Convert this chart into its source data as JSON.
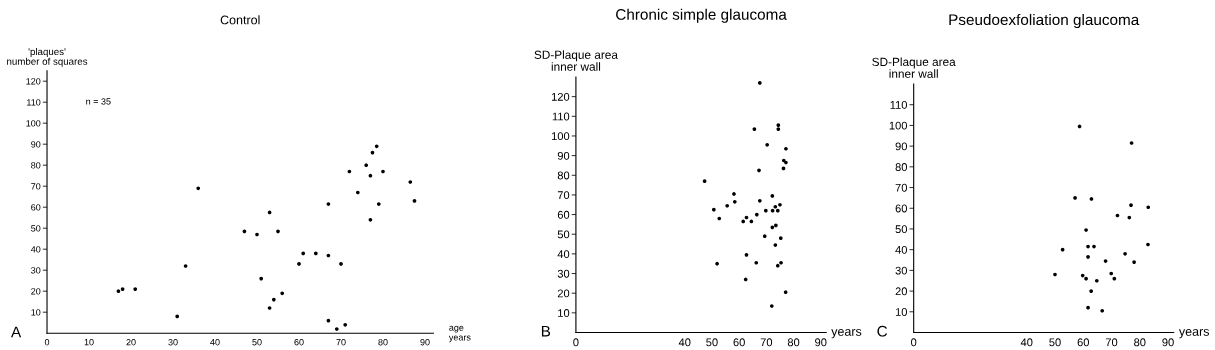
{
  "chart_data": [
    {
      "type": "scatter",
      "title": "Control",
      "ylabel": "'plaques'\nnumber of squares",
      "xlabel": "age\nyears",
      "annotations": [
        "A",
        "n = 35"
      ],
      "x": [
        17,
        18,
        21,
        31,
        33,
        36,
        47,
        50,
        51,
        53,
        53,
        54,
        55,
        56,
        60,
        61,
        64,
        67,
        67,
        67,
        69,
        70,
        71,
        72,
        74,
        76,
        77,
        77,
        77.5,
        78.5,
        79,
        80,
        86.5,
        87.5
      ],
      "values": [
        20,
        21,
        21,
        8,
        32,
        69,
        48.5,
        47,
        26,
        12,
        57.5,
        16,
        48.5,
        19,
        33,
        38,
        38,
        37,
        61.5,
        6,
        2,
        33,
        4,
        77,
        67,
        80,
        75,
        54,
        86,
        89,
        61.5,
        77,
        72,
        63
      ],
      "color": "#000000",
      "marker": "circle",
      "grid": false,
      "xlim": [
        0,
        92
      ],
      "xticks": [
        0,
        10,
        20,
        30,
        40,
        50,
        60,
        70,
        80,
        90
      ],
      "ylim": [
        0,
        125
      ],
      "yticks": [
        10,
        20,
        30,
        40,
        50,
        60,
        70,
        80,
        90,
        100,
        110,
        120
      ]
    },
    {
      "type": "scatter",
      "title": "Chronic simple glaucoma",
      "ylabel": "SD-Plaque area\ninner wall",
      "xlabel": "years",
      "annotations": [
        "B"
      ],
      "x": [
        67.6,
        65.6,
        74.4,
        74.4,
        70.3,
        77.2,
        76.4,
        77.2,
        76.3,
        67.3,
        47.3,
        58.1,
        58.4,
        67.6,
        72.2,
        50.7,
        55.6,
        52.7,
        61.5,
        62.7,
        64.5,
        66.5,
        69.8,
        72.3,
        73.3,
        74.2,
        75,
        72.2,
        73.5,
        69.4,
        75.3,
        73.3,
        62.7,
        51.9,
        66.3,
        74.2,
        75.4,
        62.4,
        77.1,
        72
      ],
      "values": [
        127,
        103.5,
        105.5,
        103.5,
        95.5,
        93.5,
        87.5,
        86.5,
        83.5,
        82.5,
        77,
        70.5,
        66.5,
        67,
        69.5,
        62.5,
        64.5,
        58,
        56.5,
        58.5,
        56.5,
        60,
        62,
        62,
        64,
        62,
        65,
        53.5,
        54.5,
        49,
        48,
        44.5,
        39.5,
        35,
        35.5,
        34,
        35.5,
        27,
        20.5,
        13.5
      ],
      "color": "#000000",
      "marker": "circle",
      "grid": false,
      "xlim": [
        0,
        92
      ],
      "xticks": [
        0,
        40,
        50,
        60,
        70,
        80,
        90
      ],
      "ylim": [
        0,
        130
      ],
      "yticks": [
        10,
        20,
        30,
        40,
        50,
        60,
        70,
        80,
        90,
        100,
        110,
        120
      ]
    },
    {
      "type": "scatter",
      "title": "Pseudoexfoliation glaucoma",
      "ylabel": "SD-Plaque area\ninner wall",
      "xlabel": "years",
      "annotations": [
        "C"
      ],
      "x": [
        50,
        58.7,
        77.1,
        57.1,
        62.9,
        76.9,
        83,
        72.1,
        76.3,
        61,
        52.7,
        61.7,
        63.8,
        82.9,
        61.7,
        74.8,
        67.9,
        78,
        69.9,
        59.8,
        61,
        71,
        64.8,
        62.8,
        61.7,
        66.7
      ],
      "values": [
        28,
        99.5,
        91.5,
        65,
        64.5,
        61.5,
        60.5,
        56.5,
        55.5,
        49.5,
        40,
        41.5,
        41.5,
        42.5,
        36.5,
        38,
        34.5,
        34,
        28.5,
        27.5,
        26,
        26,
        25,
        20,
        12,
        10.5
      ],
      "color": "#000000",
      "marker": "circle",
      "grid": false,
      "xlim": [
        0,
        92
      ],
      "xticks": [
        0,
        40,
        50,
        60,
        70,
        80,
        90
      ],
      "ylim": [
        0,
        120
      ],
      "yticks": [
        10,
        20,
        30,
        40,
        50,
        60,
        70,
        80,
        90,
        100,
        110
      ]
    }
  ]
}
